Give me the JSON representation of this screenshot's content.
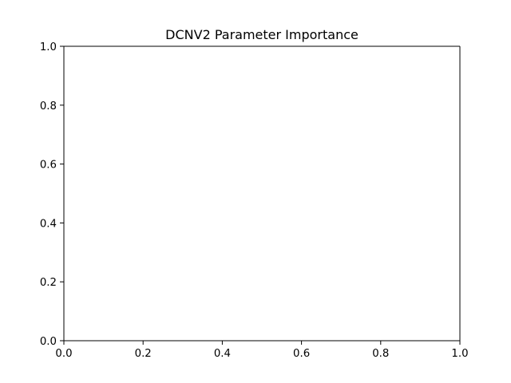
{
  "chart_data": {
    "type": "scatter",
    "title": "DCNV2 Parameter Importance",
    "xlabel": "",
    "ylabel": "",
    "xlim": [
      0,
      1
    ],
    "ylim": [
      0,
      1
    ],
    "x_ticks": [
      "0.0",
      "0.2",
      "0.4",
      "0.6",
      "0.8",
      "1.0"
    ],
    "y_ticks": [
      "0.0",
      "0.2",
      "0.4",
      "0.6",
      "0.8",
      "1.0"
    ],
    "grid": false,
    "legend": "none",
    "series": []
  }
}
